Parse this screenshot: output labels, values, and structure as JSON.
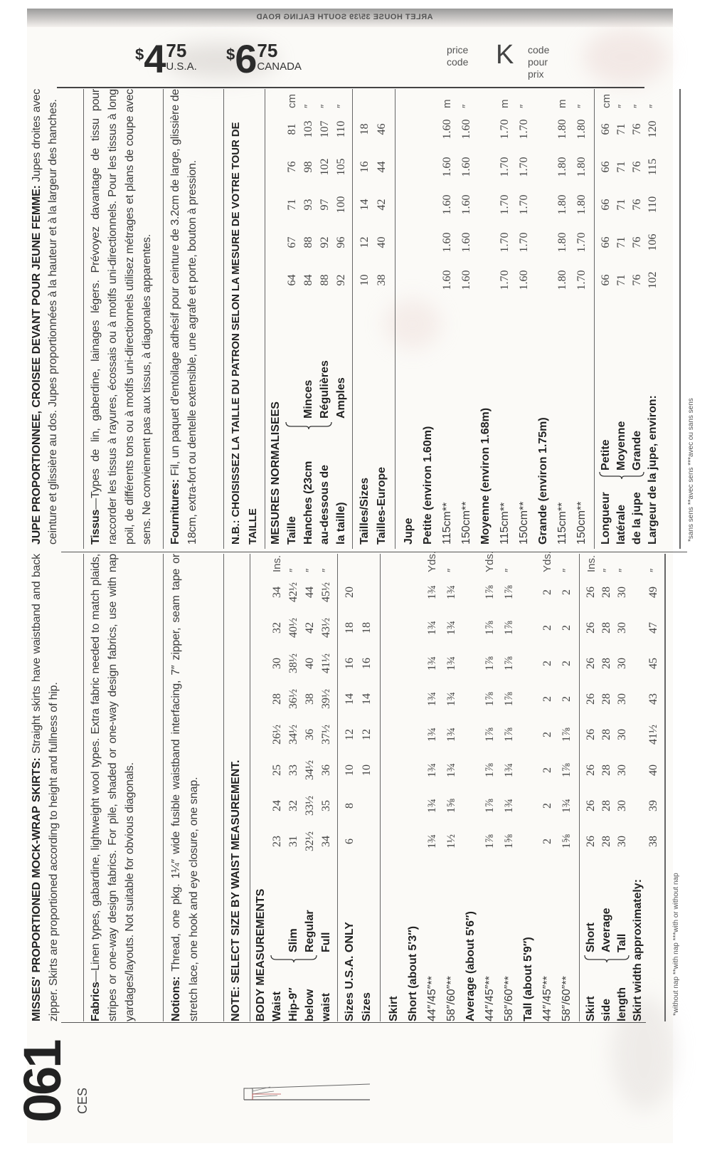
{
  "header": {
    "top_strip": "ARLET HOUSE 35/39 SOUTH EALING ROAD",
    "price_usa": {
      "symbol": "$",
      "whole": "4",
      "cents": "75",
      "region": "U.S.A."
    },
    "price_canada": {
      "symbol": "$",
      "whole": "6",
      "cents": "75",
      "region": "CANADA"
    },
    "price_code_label": "price code",
    "price_code": "K",
    "price_code_label_fr": "code pour prix"
  },
  "pattern": {
    "number": "061",
    "pieces": "CES"
  },
  "english": {
    "title_bold": "MISSES' PROPORTIONED MOCK-WRAP SKIRTS:",
    "title_text": " Straight skirts have waistband and back zipper. Skirts are proportioned according to height and fullness of hip.",
    "fabrics_label": "Fabrics",
    "fabrics_text": "—Linen types, gabardine, lightweight wool types. Extra fabric needed to match plaids, stripes or one-way design fabrics. For pile, shaded or one-way design fabrics, use with nap yardages/layouts. Not suitable for obvious diagonals.",
    "notions_label": "Notions:",
    "notions_text": " Thread, one pkg. 1¼″ wide fusible waistband interfacing, 7″ zipper, seam tape or stretch lace, one hook and eye closure, one snap.",
    "note": "NOTE: SELECT SIZE BY WAIST MEASUREMENT.",
    "body": [
      {
        "label": "BODY MEASUREMENTS",
        "bold": true
      },
      {
        "label": "Waist",
        "bold": true,
        "values": [
          "23",
          "24",
          "25",
          "26½",
          "28",
          "30",
          "32",
          "34"
        ],
        "unit": "Ins."
      },
      {
        "label": "Hip-9″",
        "sub": "Slim",
        "bold": true,
        "values": [
          "31",
          "32",
          "33",
          "34½",
          "36½",
          "38½",
          "40½",
          "42½"
        ],
        "unit": "″"
      },
      {
        "label": "below",
        "sub": "Regular",
        "bold": true,
        "values": [
          "32½",
          "33½",
          "34½",
          "36",
          "38",
          "40",
          "42",
          "44"
        ],
        "unit": "″"
      },
      {
        "label": "waist",
        "sub": "Full",
        "bold": true,
        "values": [
          "34",
          "35",
          "36",
          "37½",
          "39½",
          "41½",
          "43½",
          "45½"
        ],
        "unit": "″"
      }
    ],
    "sizes": [
      {
        "label": "Sizes U.S.A. ONLY",
        "bold": true,
        "values": [
          "6",
          "8",
          "10",
          "12",
          "14",
          "16",
          "18",
          "20"
        ]
      },
      {
        "label": "Sizes",
        "bold": true,
        "values": [
          "",
          "",
          "10",
          "12",
          "14",
          "16",
          "18",
          ""
        ]
      }
    ],
    "skirt": [
      {
        "label": "Skirt",
        "bold": true
      },
      {
        "label": "Short (about 5'3″)",
        "bold": true
      },
      {
        "label": "44″/45″**",
        "values": [
          "1¾",
          "1¾",
          "1¾",
          "1¾",
          "1¾",
          "1¾",
          "1¾",
          "1¾"
        ],
        "unit": "Yds."
      },
      {
        "label": "58″/60″**",
        "values": [
          "1½",
          "1⅝",
          "1¾",
          "1¾",
          "1¾",
          "1¾",
          "1¾",
          "1¾"
        ],
        "unit": "″"
      },
      {
        "label": "Average (about 5'6″)",
        "bold": true
      },
      {
        "label": "44″/45″**",
        "values": [
          "1⅞",
          "1⅞",
          "1⅞",
          "1⅞",
          "1⅞",
          "1⅞",
          "1⅞",
          "1⅞"
        ],
        "unit": "Yds."
      },
      {
        "label": "58″/60″**",
        "values": [
          "1⅝",
          "1¾",
          "1¾",
          "1⅞",
          "1⅞",
          "1⅞",
          "1⅞",
          "1⅞"
        ],
        "unit": "″"
      },
      {
        "label": "Tall (about 5'9″)",
        "bold": true
      },
      {
        "label": "44″/45″**",
        "values": [
          "2",
          "2",
          "2",
          "2",
          "2",
          "2",
          "2",
          "2"
        ],
        "unit": "Yds."
      },
      {
        "label": "58″/60″**",
        "values": [
          "1⅝",
          "1¾",
          "1⅞",
          "1⅞",
          "2",
          "2",
          "2",
          "2"
        ],
        "unit": "″"
      }
    ],
    "length": [
      {
        "label": "Skirt",
        "sub": "Short",
        "bold": true,
        "values": [
          "26",
          "26",
          "26",
          "26",
          "26",
          "26",
          "26",
          "26"
        ],
        "unit": "Ins."
      },
      {
        "label": "side",
        "sub": "Average",
        "bold": true,
        "values": [
          "28",
          "28",
          "28",
          "28",
          "28",
          "28",
          "28",
          "28"
        ],
        "unit": "″"
      },
      {
        "label": "length",
        "sub": "Tall",
        "bold": true,
        "values": [
          "30",
          "30",
          "30",
          "30",
          "30",
          "30",
          "30",
          "30"
        ],
        "unit": "″"
      },
      {
        "label": "Skirt width approximately:",
        "bold": true
      },
      {
        "label": "",
        "values": [
          "38",
          "39",
          "40",
          "41½",
          "43",
          "45",
          "47",
          "49"
        ],
        "unit": "″"
      }
    ],
    "footnote": "*without nap **with nap ***with or without nap"
  },
  "french": {
    "title_bold": "JUPE PROPORTIONNEE, CROISEE DEVANT POUR JEUNE FEMME:",
    "title_text": " Jupes droites avec ceinture et glissière au dos. Jupes proportionnées à la hauteur et à la largeur des hanches.",
    "fabrics_label": "Tissus",
    "fabrics_text": "—Types de lin, gaberdine, lainages légers. Prévoyez davantage de tissu pour raccorder les tissus à rayures, écossais ou à motifs uni-directionnels. Pour les tissus à long poil, de différents tons ou à motifs uni-directionnels utilisez métrages et plans de coupe avec sens. Ne conviennent pas aux tissus, à diagonales apparentes.",
    "notions_label": "Fournitures:",
    "notions_text": " Fil, un paquet d'entoilage adhésif pour ceinture de 3.2cm de large, glissière de 18cm, extra-fort ou dentelle extensible, une agrafe et porte, bouton à pression.",
    "note": "N.B.: CHOISISSEZ LA TAILLE DU PATRON SELON LA MESURE DE VOTRE TOUR DE TAILLE",
    "body": [
      {
        "label": "MESURES NORMALISEES",
        "bold": true
      },
      {
        "label": "Taille",
        "bold": true,
        "values": [
          "64",
          "67",
          "71",
          "76",
          "81"
        ],
        "unit": "cm"
      },
      {
        "label": "Hanches (23cm",
        "sub": "Minces",
        "bold": true,
        "values": [
          "84",
          "88",
          "93",
          "98",
          "103"
        ],
        "unit": "″"
      },
      {
        "label": "au-dessous de",
        "sub": "Régulières",
        "bold": true,
        "values": [
          "88",
          "92",
          "97",
          "102",
          "107"
        ],
        "unit": "″"
      },
      {
        "label": "la taille)",
        "sub": "Amples",
        "bold": true,
        "values": [
          "92",
          "96",
          "100",
          "105",
          "110"
        ],
        "unit": "″"
      }
    ],
    "sizes": [
      {
        "label": "Tailles/Sizes",
        "bold": true,
        "values": [
          "10",
          "12",
          "14",
          "16",
          "18"
        ]
      },
      {
        "label": "Tailles-Europe",
        "bold": true,
        "values": [
          "38",
          "40",
          "42",
          "44",
          "46"
        ]
      }
    ],
    "skirt": [
      {
        "label": "Jupe",
        "bold": true
      },
      {
        "label": "Petite (environ 1.60m)",
        "bold": true
      },
      {
        "label": "115cm**",
        "values": [
          "1.60",
          "1.60",
          "1.60",
          "1.60",
          "1.60"
        ],
        "unit": "m"
      },
      {
        "label": "150cm**",
        "values": [
          "1.60",
          "1.60",
          "1.60",
          "1.60",
          "1.60"
        ],
        "unit": "″"
      },
      {
        "label": "Moyenne (environ 1.68m)",
        "bold": true
      },
      {
        "label": "115cm**",
        "values": [
          "1.70",
          "1.70",
          "1.70",
          "1.70",
          "1.70"
        ],
        "unit": "m"
      },
      {
        "label": "150cm**",
        "values": [
          "1.60",
          "1.70",
          "1.70",
          "1.70",
          "1.70"
        ],
        "unit": "″"
      },
      {
        "label": "Grande (environ 1.75m)",
        "bold": true
      },
      {
        "label": "115cm**",
        "values": [
          "1.80",
          "1.80",
          "1.80",
          "1.80",
          "1.80"
        ],
        "unit": "m"
      },
      {
        "label": "150cm**",
        "values": [
          "1.70",
          "1.70",
          "1.80",
          "1.80",
          "1.80"
        ],
        "unit": "″"
      }
    ],
    "length": [
      {
        "label": "Longueur",
        "sub": "Petite",
        "bold": true,
        "values": [
          "66",
          "66",
          "66",
          "66",
          "66"
        ],
        "unit": "cm"
      },
      {
        "label": "latérale",
        "sub": "Moyenne",
        "bold": true,
        "values": [
          "71",
          "71",
          "71",
          "71",
          "71"
        ],
        "unit": "″"
      },
      {
        "label": "de la jupe",
        "sub": "Grande",
        "bold": true,
        "values": [
          "76",
          "76",
          "76",
          "76",
          "76"
        ],
        "unit": "″"
      },
      {
        "label": "Largeur de la jupe, environ:",
        "bold": true,
        "values": [
          "102",
          "106",
          "110",
          "115",
          "120"
        ],
        "unit": "″"
      }
    ],
    "footnote": "*sans sens **avec sens ***avec ou sans sens"
  }
}
